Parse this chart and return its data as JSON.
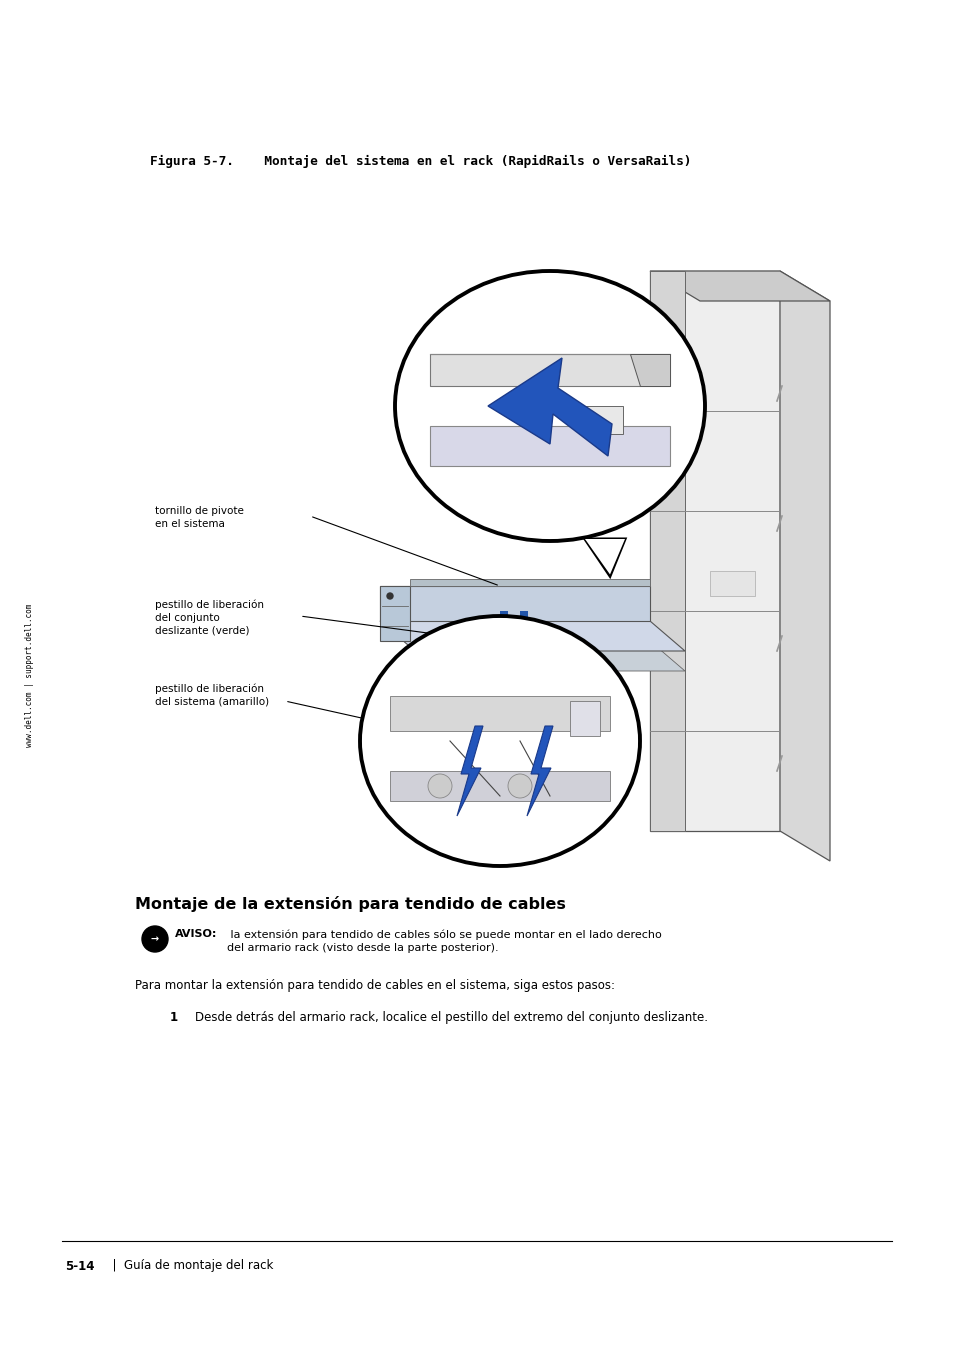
{
  "bg_color": "#ffffff",
  "page_width": 9.54,
  "page_height": 13.51,
  "figure_title": "Figura 5-7.    Montaje del sistema en el rack (RapidRails o VersaRails)",
  "figure_title_fontsize": 9.2,
  "sidebar_text": "www.dell.com | support.dell.com",
  "label1_text": "tornillo de pivote\nen el sistema",
  "label2_text": "pestillo de liberación\ndel conjunto\ndeslizante (verde)",
  "label3_text": "pestillo de liberación\ndel sistema (amarillo)",
  "section_title": "Montaje de la extensión para tendido de cables",
  "notice_bold": "AVISO:",
  "notice_text": " la extensión para tendido de cables sólo se puede montar en el lado derecho\ndel armario rack (visto desde la parte posterior).",
  "para_text": "Para montar la extensión para tendido de cables en el sistema, siga estos pasos:",
  "step1_text": "Desde detrás del armario rack, localice el pestillo del extremo del conjunto deslizante.",
  "footer_bold": "5-14",
  "footer_text": "Guía de montaje del rack",
  "label_fontsize": 7.5,
  "body_fontsize": 8.5,
  "notice_fontsize": 8.0,
  "section_fontsize": 11.5,
  "footer_fontsize": 8.5
}
